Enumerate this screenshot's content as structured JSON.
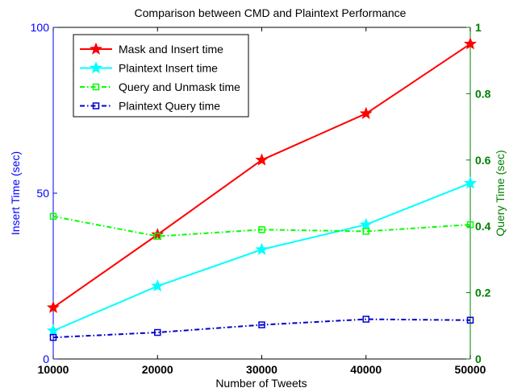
{
  "chart_data": {
    "type": "line",
    "title": "Comparison between CMD and Plaintext Performance",
    "xlabel": "Number of Tweets",
    "ylabel_left": "Insert Time (sec)",
    "ylabel_right": "Query Time (sec)",
    "x": [
      10000,
      20000,
      30000,
      40000,
      50000
    ],
    "x_ticks": [
      "10000",
      "20000",
      "30000",
      "40000",
      "50000"
    ],
    "xlim": [
      10000,
      50000
    ],
    "ylim_left": [
      0,
      100
    ],
    "ylim_right": [
      0,
      1
    ],
    "y_ticks_left": [
      "0",
      "50",
      "100"
    ],
    "y_ticks_right": [
      "0",
      "0.2",
      "0.4",
      "0.6",
      "0.8",
      "1"
    ],
    "left_axis_color": "#0000ff",
    "right_axis_color": "#008000",
    "legend_position": "top-left",
    "grid": false,
    "series": [
      {
        "name": "Mask and Insert time",
        "axis": "left",
        "color": "#ff0000",
        "line": "solid",
        "marker": "star",
        "values": [
          15.5,
          37.5,
          60,
          74,
          95
        ]
      },
      {
        "name": "Plaintext Insert time",
        "axis": "left",
        "color": "#00ffff",
        "line": "solid",
        "marker": "star",
        "values": [
          8.5,
          22,
          33,
          40.5,
          53
        ]
      },
      {
        "name": "Query and Unmask time",
        "axis": "right",
        "color": "#00ff00",
        "line": "dashdot",
        "marker": "square",
        "values": [
          0.43,
          0.37,
          0.39,
          0.385,
          0.405
        ]
      },
      {
        "name": "Plaintext Query time",
        "axis": "right",
        "color": "#0000cc",
        "line": "dashdot",
        "marker": "square",
        "values": [
          0.065,
          0.08,
          0.103,
          0.12,
          0.117
        ]
      }
    ]
  }
}
